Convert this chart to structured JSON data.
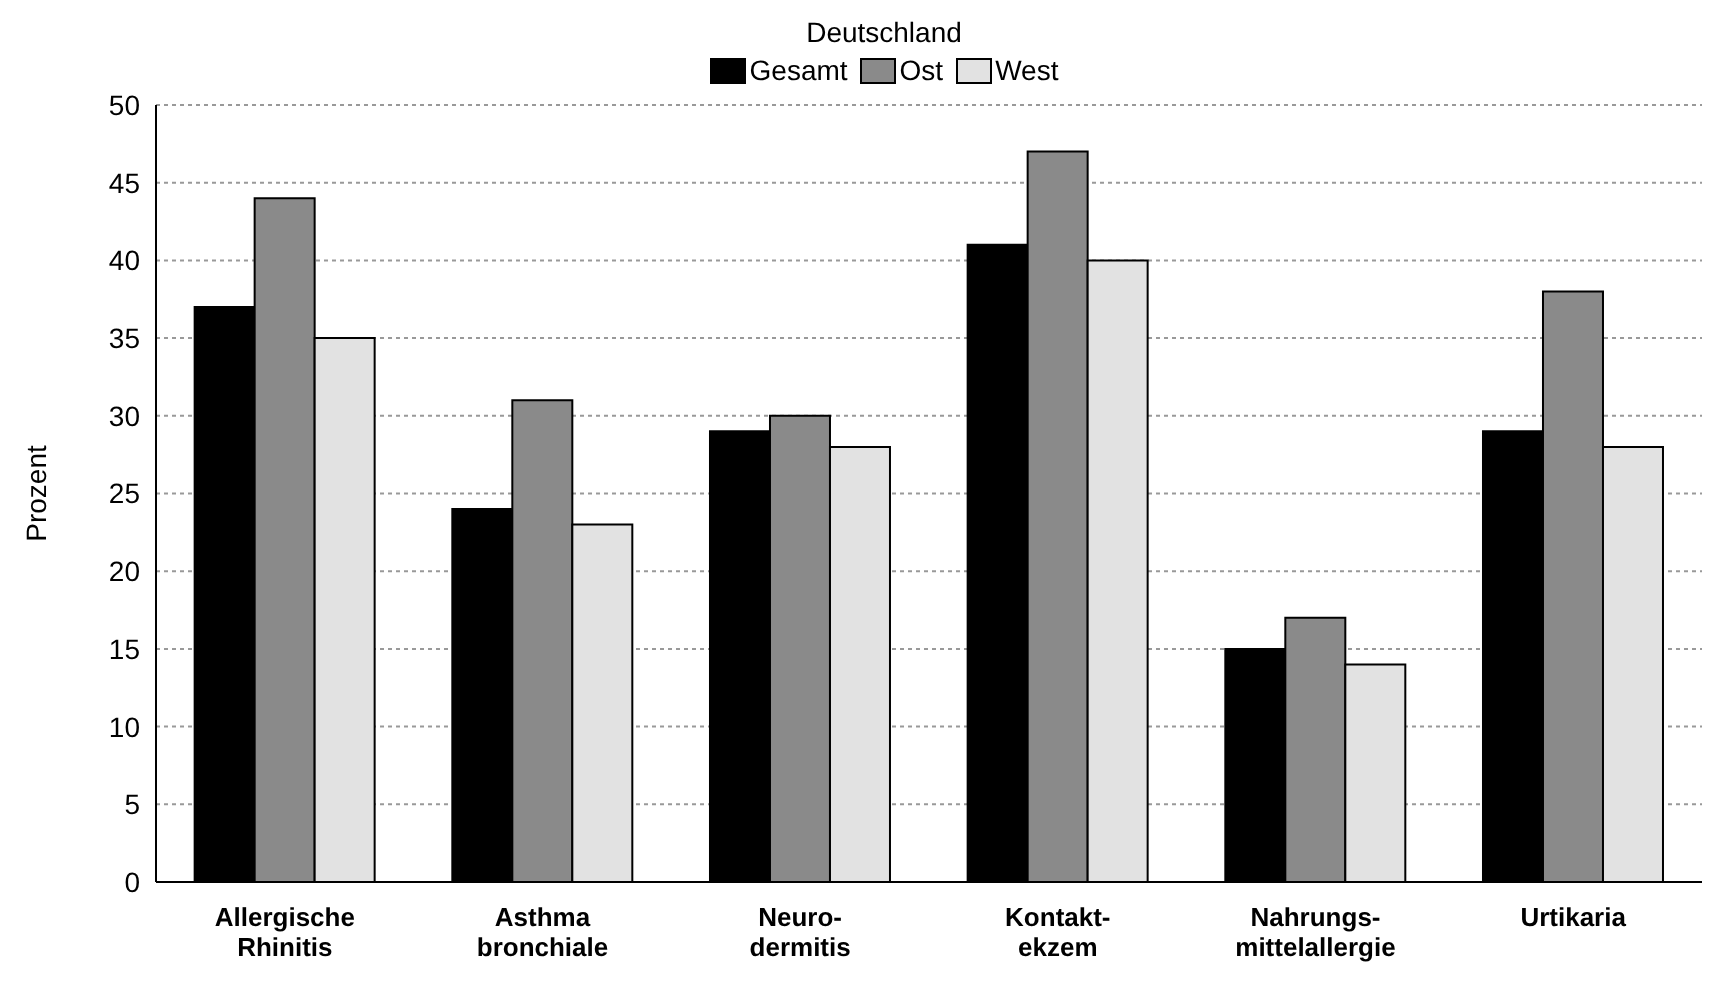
{
  "chart_data": {
    "type": "bar",
    "legend_title": "Deutschland",
    "ylabel": "Prozent",
    "categories": [
      "Allergische\nRhinitis",
      "Asthma\nbronchiale",
      "Neuro-\ndermitis",
      "Kontakt-\nekzem",
      "Nahrungs-\nmittelallergie",
      "Urtikaria"
    ],
    "series": [
      {
        "name": "Gesamt",
        "color": "#000000",
        "values": [
          37,
          24,
          29,
          41,
          15,
          29
        ]
      },
      {
        "name": "Ost",
        "color": "#8a8a8a",
        "values": [
          44,
          31,
          30,
          47,
          17,
          38
        ]
      },
      {
        "name": "West",
        "color": "#e2e2e2",
        "values": [
          35,
          23,
          28,
          40,
          14,
          28
        ]
      }
    ],
    "ylim": [
      0,
      50
    ],
    "yticks": [
      0,
      5,
      10,
      15,
      20,
      25,
      30,
      35,
      40,
      45,
      50
    ],
    "grid": "y",
    "legend": "top"
  }
}
